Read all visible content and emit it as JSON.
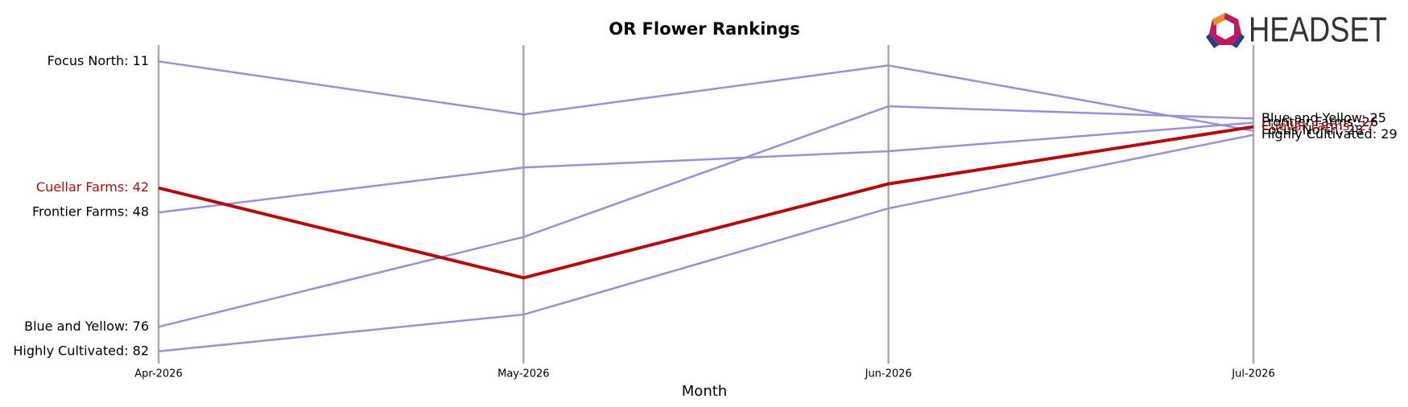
{
  "chart_data": {
    "type": "bump",
    "title": "OR Flower Rankings",
    "x_label": "Month",
    "categories": [
      "Apr-2026",
      "May-2026",
      "Jun-2026",
      "Jul-2026"
    ],
    "ylim": [
      7,
      85
    ],
    "y_inverted": true,
    "series": [
      {
        "name": "Focus North",
        "color": "#9b8fd9",
        "values": [
          11,
          24,
          12,
          28
        ],
        "value_labels": [
          "Focus North: 11",
          null,
          null,
          "Focus North: 28"
        ]
      },
      {
        "name": "Frontier Farms",
        "color": "#9b8fd9",
        "values": [
          48,
          37,
          33,
          26
        ],
        "value_labels": [
          "Frontier Farms: 48",
          null,
          null,
          "Frontier Farms: 26"
        ]
      },
      {
        "name": "Blue and Yellow",
        "color": "#9b8fd9",
        "values": [
          76,
          54,
          22,
          25
        ],
        "value_labels": [
          "Blue and Yellow: 76",
          null,
          null,
          "Blue and Yellow: 25"
        ]
      },
      {
        "name": "Highly Cultivated",
        "color": "#9b8fd9",
        "values": [
          82,
          73,
          47,
          29
        ],
        "value_labels": [
          "Highly Cultivated: 82",
          null,
          null,
          "Highly Cultivated: 29"
        ]
      },
      {
        "name": "Cuellar Farms",
        "color": "#b30c0c",
        "highlight": true,
        "values": [
          42,
          64,
          41,
          27
        ],
        "value_labels": [
          "Cuellar Farms: 42",
          null,
          null,
          "Cuellar Farms: 27"
        ]
      }
    ]
  },
  "logo": "HEADSET"
}
